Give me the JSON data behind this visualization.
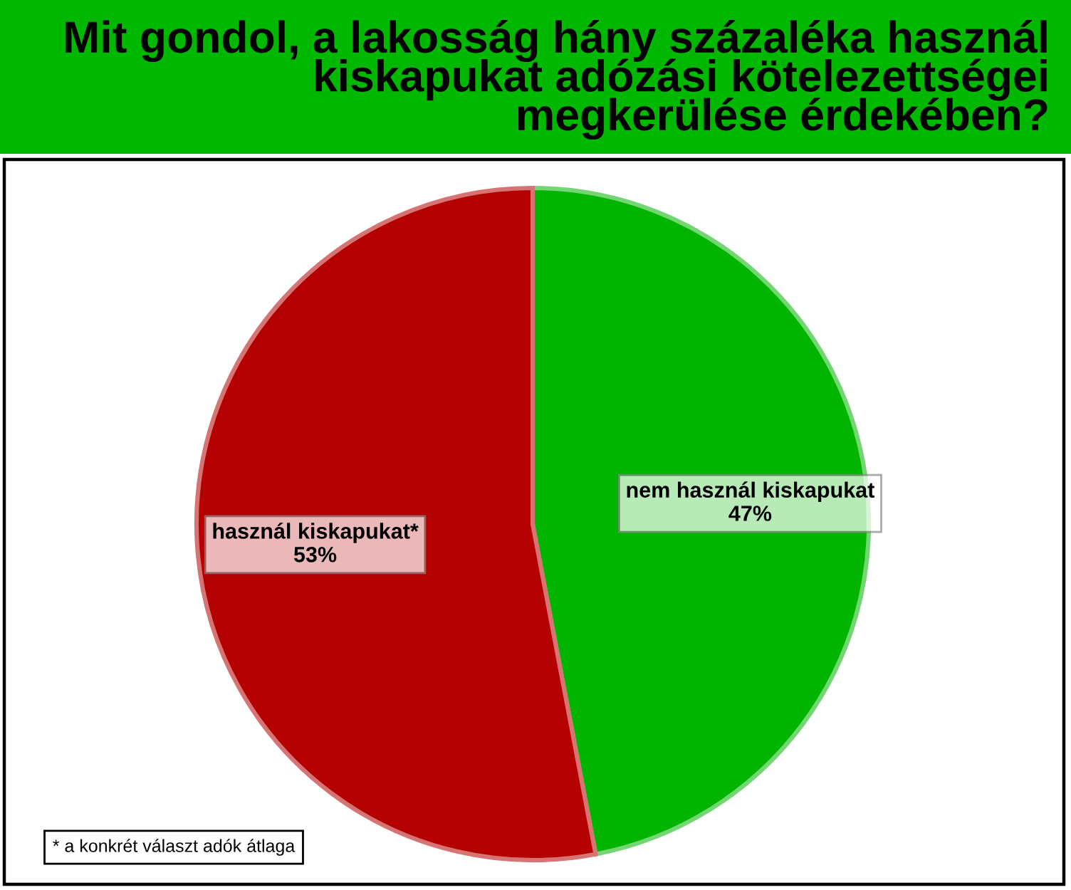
{
  "chart_data": {
    "type": "pie",
    "title": "Mit gondol, a lakosság hány százaléka használ\nkiskapukat adózási kötelezettségei\nmegkerülése érdekében?",
    "categories": [
      "nem használ kiskapukat",
      "használ kiskapukat*"
    ],
    "values": [
      47,
      53
    ],
    "colors": [
      "#00b400",
      "#b40000"
    ],
    "value_labels": [
      "47%",
      "53%"
    ],
    "legend": false,
    "annotations": [
      "* a konkrét választ adók átlaga"
    ]
  }
}
